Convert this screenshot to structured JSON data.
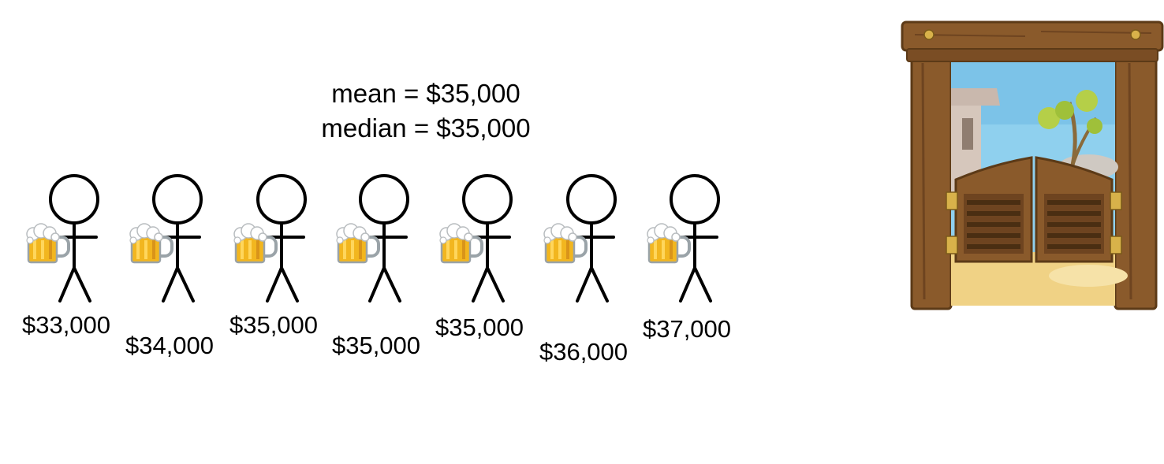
{
  "stats": {
    "mean_text": "mean = $35,000",
    "median_text": "median = $35,000"
  },
  "people": [
    {
      "salary": "$33,000"
    },
    {
      "salary": "$34,000"
    },
    {
      "salary": "$35,000"
    },
    {
      "salary": "$35,000"
    },
    {
      "salary": "$35,000"
    },
    {
      "salary": "$36,000"
    },
    {
      "salary": "$37,000"
    }
  ],
  "colors": {
    "beer": "#f2b61f",
    "beer_dark": "#d9941a",
    "foam": "#ffffff",
    "wood": "#8a5a2b",
    "wood_dark": "#5c3a17",
    "sky": "#8fd0ee",
    "sand": "#f0d285"
  },
  "icons": [
    "stick-figure-icon",
    "beer-mug-icon",
    "saloon-door-icon"
  ]
}
